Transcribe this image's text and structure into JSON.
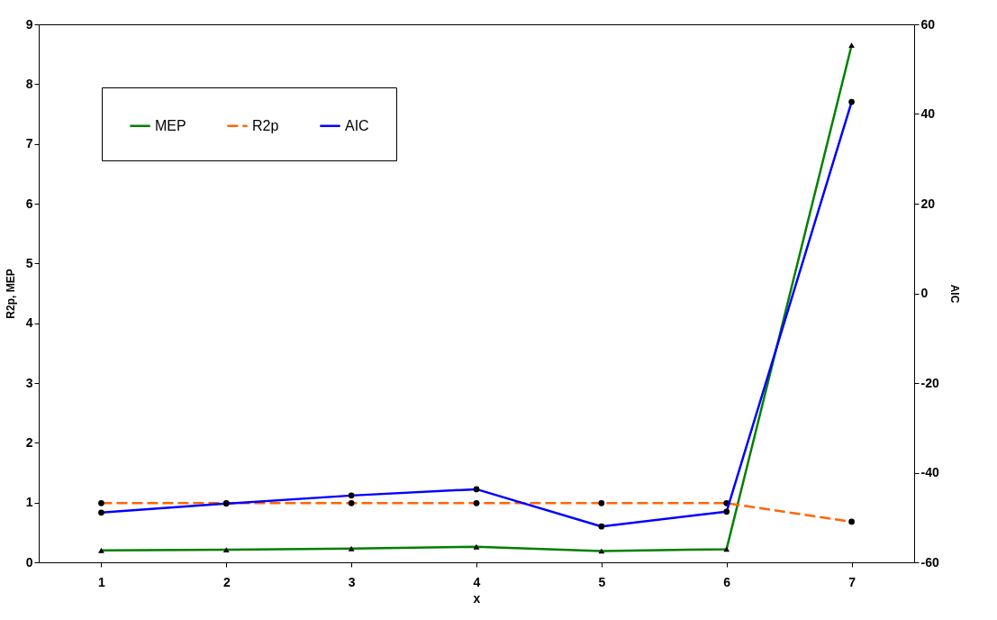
{
  "chart_data": {
    "type": "line",
    "xlabel": "x",
    "ylabel": "R2p, MEP",
    "y2label": "AIC",
    "categories": [
      "1",
      "2",
      "3",
      "4",
      "5",
      "6",
      "7"
    ],
    "series": [
      {
        "name": "MEP",
        "color": "#008000",
        "marker": "triangle",
        "line_style": "solid",
        "values": [
          0.2,
          0.21,
          0.23,
          0.26,
          0.19,
          0.22,
          8.65
        ]
      },
      {
        "name": "R2p",
        "color": "#ff6600",
        "marker": "circle",
        "line_style": "dashed",
        "values": [
          0.99,
          0.99,
          0.99,
          0.99,
          0.99,
          0.99,
          0.68
        ]
      },
      {
        "name": "AIC",
        "color": "#0000ff",
        "marker": "circle",
        "line_style": "solid",
        "axis": "y2",
        "values": [
          -48.9,
          -46.9,
          -45.1,
          -43.7,
          -52.0,
          -48.7,
          42.7
        ]
      }
    ],
    "ylim": [
      0,
      9
    ],
    "yticks": [
      0,
      1,
      2,
      3,
      4,
      5,
      6,
      7,
      8,
      9
    ],
    "y2lim": [
      -60,
      60
    ],
    "y2ticks": [
      -60,
      -40,
      -20,
      0,
      20,
      40,
      60
    ],
    "grid": false,
    "legend": "top left"
  }
}
